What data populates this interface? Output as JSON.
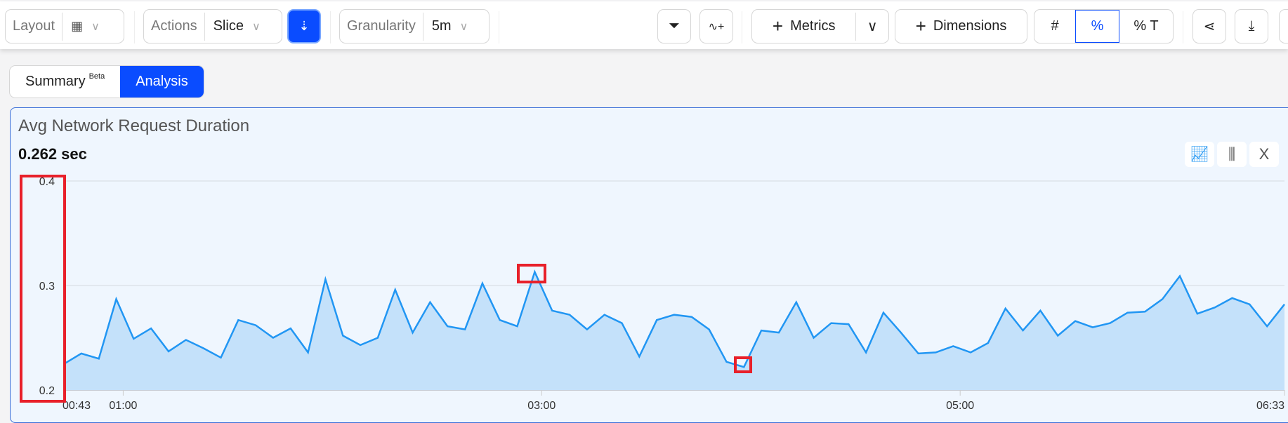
{
  "toolbar": {
    "layout_label": "Layout",
    "layout_icon": "table-layout-icon",
    "actions_label": "Actions",
    "actions_value": "Slice",
    "compress_icon": "compress-icon",
    "granularity_label": "Granularity",
    "granularity_value": "5m",
    "filter_icon": "filter-add-icon",
    "chart_add_icon": "chart-add-icon",
    "metrics_label": "Metrics",
    "dimensions_label": "Dimensions",
    "mode_options": [
      "#",
      "%",
      "% T"
    ],
    "mode_selected": "%",
    "share_icon": "share-icon",
    "download_icon": "download-icon"
  },
  "tabs": [
    {
      "label": "Summary",
      "badge": "Beta"
    },
    {
      "label": "Analysis",
      "active": true
    }
  ],
  "card": {
    "title": "Avg Network Request Duration",
    "value": "0.262 sec",
    "close_label": "X"
  },
  "colors": {
    "accent": "#0a4cff",
    "line": "#2196f3",
    "fill": "#c4e1fa",
    "highlight": "#e8202a"
  },
  "chart_data": {
    "type": "area",
    "x_start": "00:43",
    "x_end": "06:33",
    "interval": "5m",
    "xticks": [
      "00:43",
      "01:00",
      "03:00",
      "05:00",
      "06:33"
    ],
    "yticks": [
      "0.2",
      "0.3",
      "0.4"
    ],
    "ylim": [
      0.2,
      0.4
    ],
    "grid": true,
    "values": [
      0.225,
      0.235,
      0.23,
      0.287,
      0.249,
      0.259,
      0.237,
      0.248,
      0.24,
      0.231,
      0.267,
      0.262,
      0.25,
      0.259,
      0.236,
      0.306,
      0.252,
      0.243,
      0.25,
      0.296,
      0.255,
      0.284,
      0.261,
      0.258,
      0.302,
      0.267,
      0.261,
      0.313,
      0.276,
      0.272,
      0.258,
      0.272,
      0.264,
      0.232,
      0.267,
      0.272,
      0.27,
      0.258,
      0.227,
      0.222,
      0.257,
      0.255,
      0.284,
      0.25,
      0.264,
      0.263,
      0.236,
      0.274,
      0.255,
      0.235,
      0.236,
      0.242,
      0.236,
      0.245,
      0.278,
      0.257,
      0.276,
      0.252,
      0.266,
      0.26,
      0.264,
      0.274,
      0.275,
      0.287,
      0.309,
      0.273,
      0.279,
      0.288,
      0.282,
      0.261,
      0.282
    ]
  }
}
